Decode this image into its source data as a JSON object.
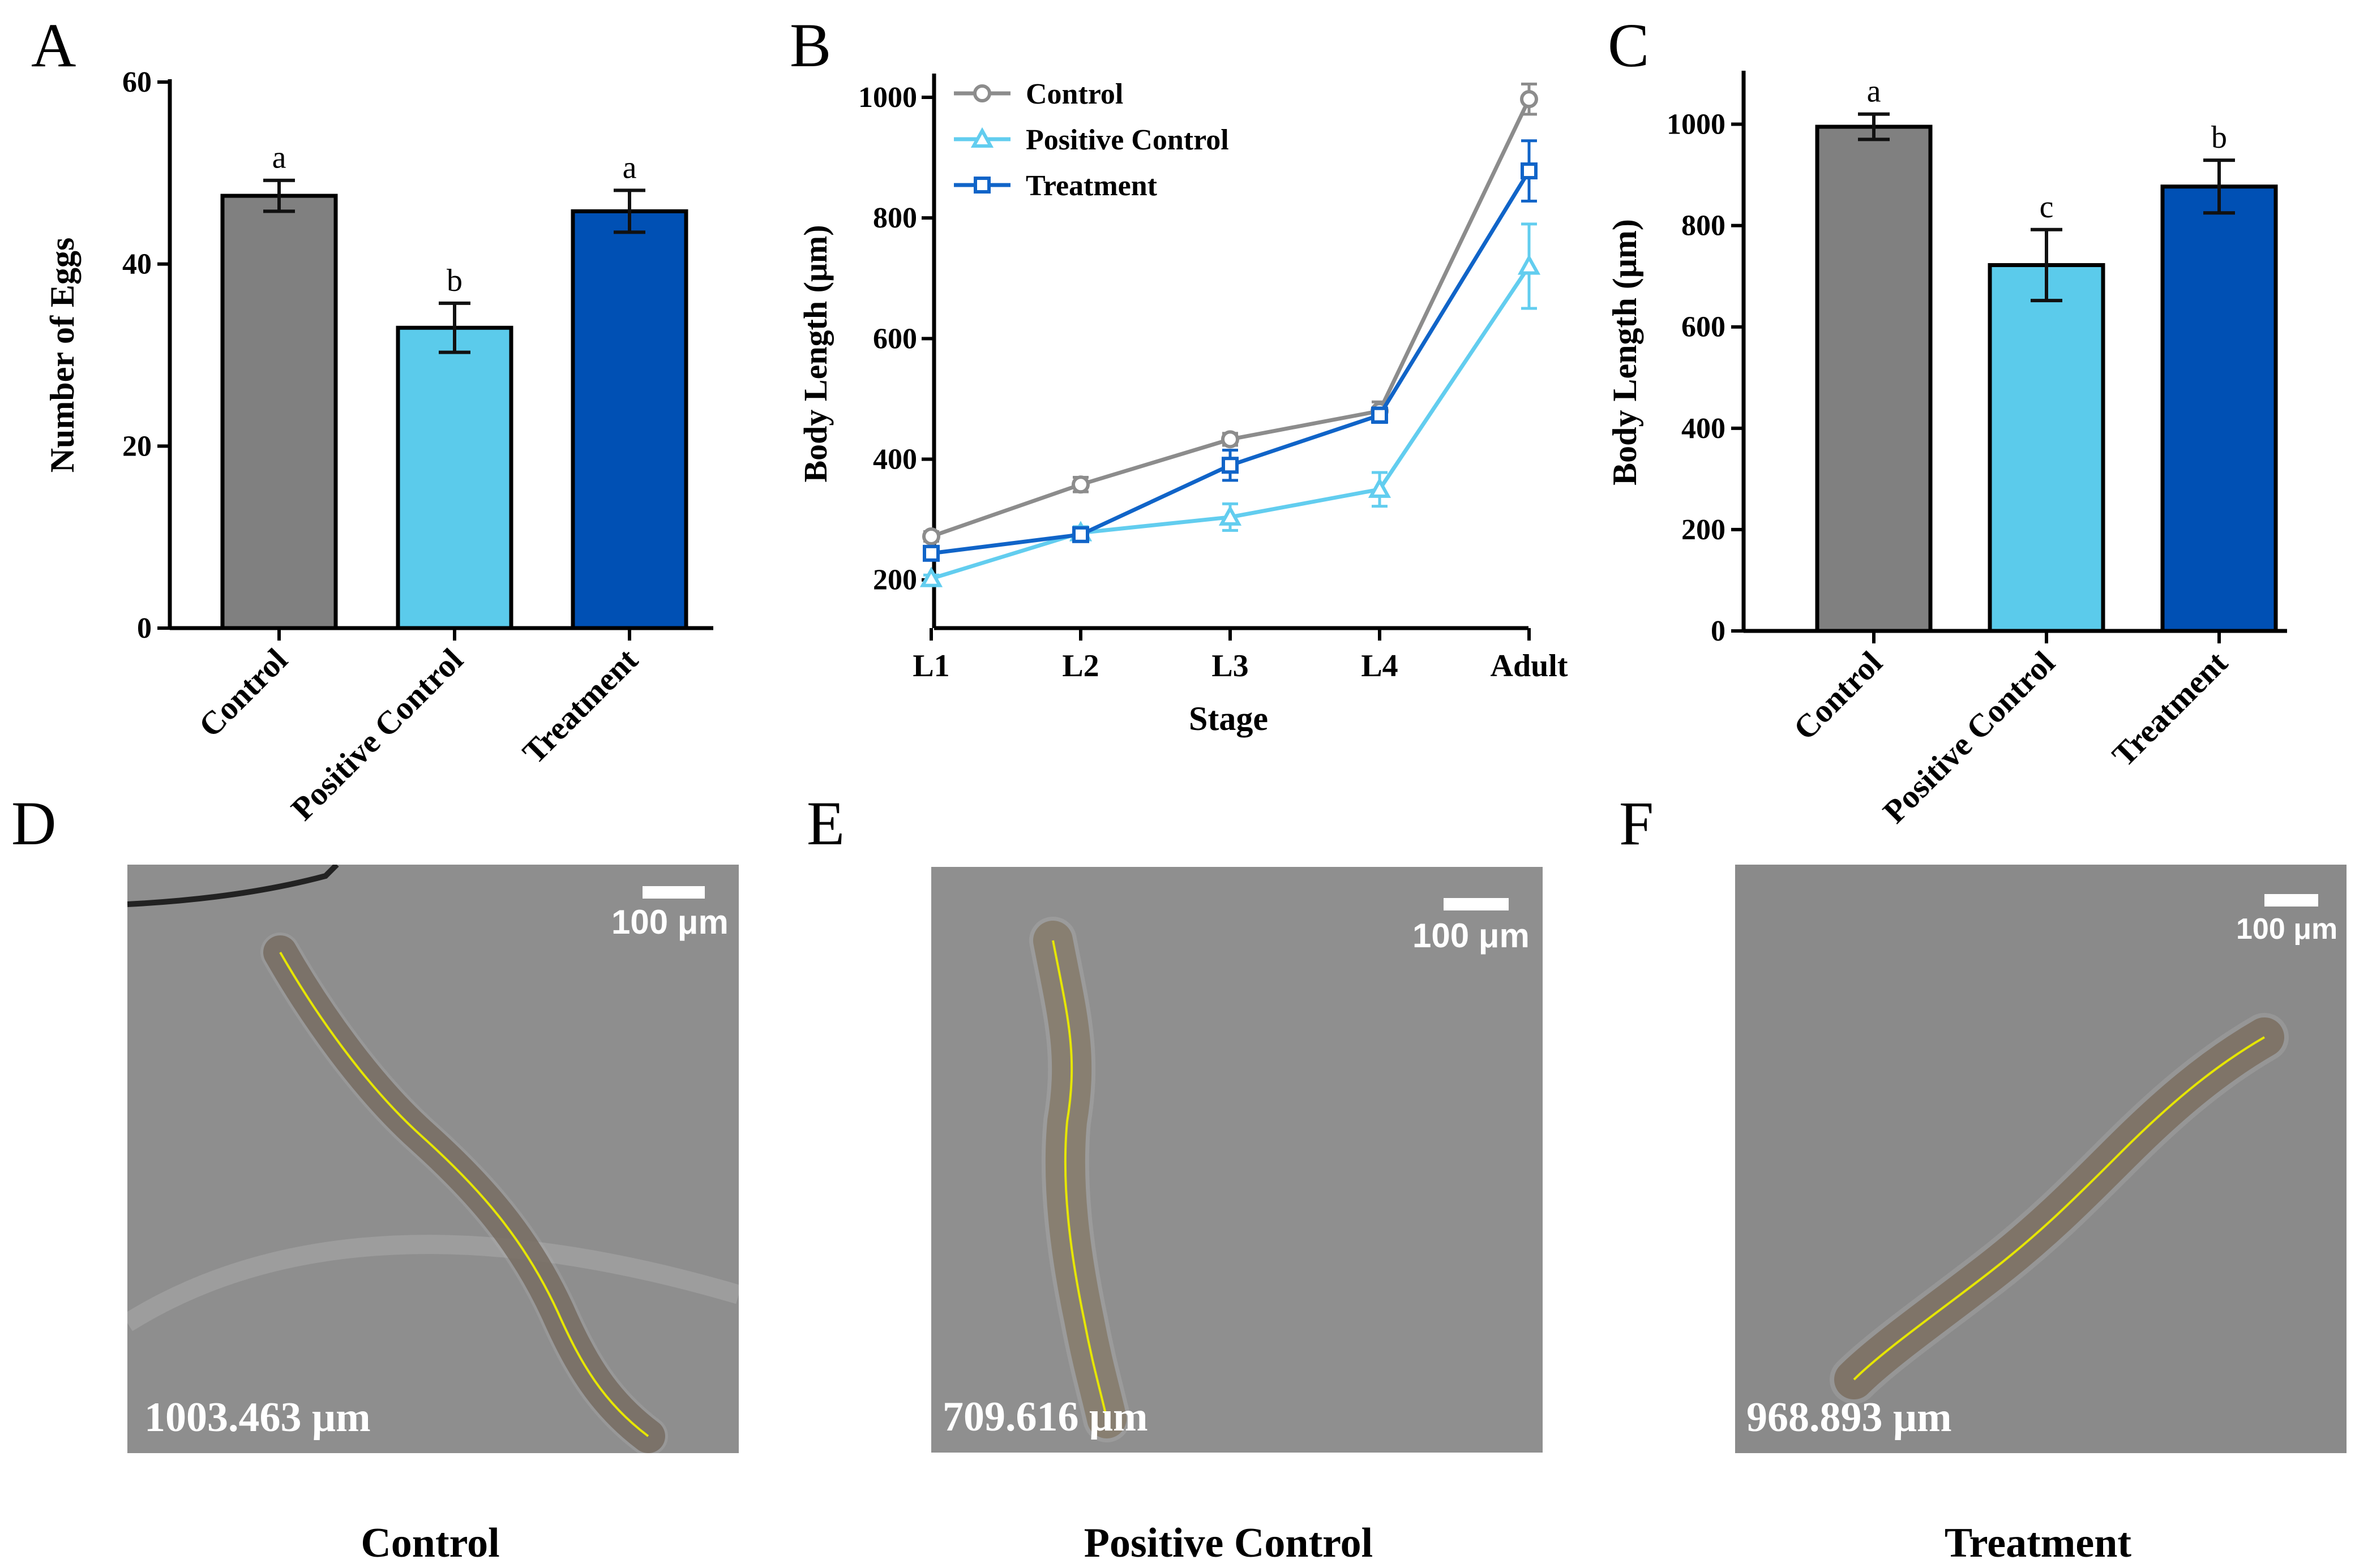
{
  "panel_letters": {
    "a": "A",
    "b": "B",
    "c": "C",
    "d": "D",
    "e": "E",
    "f": "F"
  },
  "colors": {
    "control": "#808080",
    "positive_control": "#5bcbeb",
    "treatment": "#0050b4",
    "line_control": "#8c8c8c",
    "line_positive": "#62cdef",
    "line_treatment": "#1064c8"
  },
  "chart_data": [
    {
      "id": "A",
      "type": "bar",
      "categories": [
        "Control",
        "Positive Control",
        "Treatment"
      ],
      "values": [
        47.5,
        33.0,
        45.8
      ],
      "errors": [
        1.7,
        2.7,
        2.3
      ],
      "significance": [
        "a",
        "b",
        "a"
      ],
      "ylabel": "Number of Eggs",
      "ylim": [
        0,
        60
      ],
      "yticks": [
        0,
        20,
        40,
        60
      ]
    },
    {
      "id": "B",
      "type": "line",
      "categories": [
        "L1",
        "L2",
        "L3",
        "L4",
        "Adult"
      ],
      "xlabel": "Stage",
      "ylabel": "Body Length (μm)",
      "ylim": [
        120,
        1030
      ],
      "yticks": [
        200,
        400,
        600,
        800,
        1000
      ],
      "legend_position": "top-left",
      "series": [
        {
          "name": "Control",
          "marker": "circle",
          "values": [
            272,
            358,
            433,
            480,
            997
          ],
          "errors": [
            8,
            12,
            10,
            15,
            25
          ]
        },
        {
          "name": "Positive Control",
          "marker": "triangle",
          "values": [
            202,
            278,
            304,
            350,
            720
          ],
          "errors": [
            6,
            10,
            22,
            28,
            70
          ]
        },
        {
          "name": "Treatment",
          "marker": "square",
          "values": [
            244,
            275,
            390,
            473,
            878
          ],
          "errors": [
            8,
            8,
            25,
            12,
            50
          ]
        }
      ]
    },
    {
      "id": "C",
      "type": "bar",
      "categories": [
        "Control",
        "Positive Control",
        "Treatment"
      ],
      "values": [
        995,
        722,
        877
      ],
      "errors": [
        25,
        70,
        52
      ],
      "significance": [
        "a",
        "c",
        "b"
      ],
      "ylabel": "Body Length (μm)",
      "ylim": [
        0,
        1100
      ],
      "yticks": [
        0,
        200,
        400,
        600,
        800,
        1000
      ]
    }
  ],
  "photos": [
    {
      "scale_label": "100 μm",
      "measurement": "1003.463 μm",
      "caption": "Control"
    },
    {
      "scale_label": "100 μm",
      "measurement": "709.616 μm",
      "caption": "Positive Control"
    },
    {
      "scale_label": "100 μm",
      "measurement": "968.893 μm",
      "caption": "Treatment"
    }
  ]
}
